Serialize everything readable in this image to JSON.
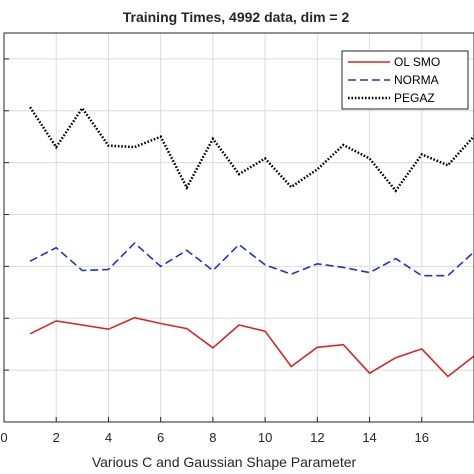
{
  "chart_data": {
    "type": "line",
    "title": "Training Times, 4992 data, dim = 2",
    "xlabel": "Various C and Gaussian Shape Parameter",
    "ylabel": "",
    "xlim": [
      0,
      18
    ],
    "ylim": [
      0,
      7.5
    ],
    "xticks": [
      0,
      2,
      4,
      6,
      8,
      10,
      12,
      14,
      16
    ],
    "yticks": [
      1,
      2,
      3,
      4,
      5,
      6,
      7
    ],
    "grid": true,
    "legend_position": "top-right",
    "x": [
      1,
      2,
      3,
      4,
      5,
      6,
      7,
      8,
      9,
      10,
      11,
      12,
      13,
      14,
      15,
      16,
      17,
      18
    ],
    "series": [
      {
        "name": "OL SMO",
        "color": "#d62728",
        "dash": "solid",
        "values": [
          1.7,
          1.95,
          1.87,
          1.79,
          2.01,
          1.9,
          1.8,
          1.43,
          1.87,
          1.75,
          1.07,
          1.44,
          1.49,
          0.94,
          1.24,
          1.41,
          0.88,
          1.27
        ]
      },
      {
        "name": "NORMA",
        "color": "#1f33cc",
        "dash": "dashed",
        "values": [
          3.1,
          3.36,
          2.92,
          2.94,
          3.45,
          3.0,
          3.31,
          2.92,
          3.42,
          3.03,
          2.85,
          3.05,
          2.98,
          2.88,
          3.15,
          2.82,
          2.82,
          3.28
        ]
      },
      {
        "name": "PEGAZ",
        "color": "#000000",
        "dash": "dotted",
        "values": [
          6.07,
          5.3,
          6.05,
          5.33,
          5.3,
          5.5,
          4.52,
          5.46,
          4.78,
          5.08,
          4.53,
          4.87,
          5.34,
          5.08,
          4.46,
          5.16,
          4.95,
          5.51
        ]
      }
    ]
  }
}
